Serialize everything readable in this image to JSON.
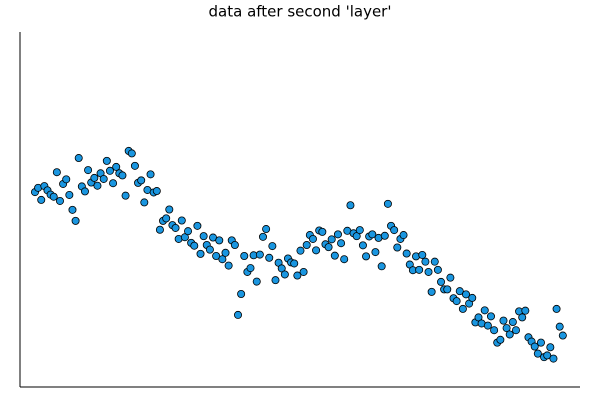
{
  "chart_data": {
    "type": "scatter",
    "title": "data after second 'layer'",
    "x": [
      1,
      2,
      3,
      4,
      5,
      6,
      7,
      8,
      9,
      10,
      11,
      12,
      13,
      14,
      15,
      16,
      17,
      18,
      19,
      20,
      21,
      22,
      23,
      24,
      25,
      26,
      27,
      28,
      29,
      30,
      31,
      32,
      33,
      34,
      35,
      36,
      37,
      38,
      39,
      40,
      41,
      42,
      43,
      44,
      45,
      46,
      47,
      48,
      49,
      50,
      51,
      52,
      53,
      54,
      55,
      56,
      57,
      58,
      59,
      60,
      61,
      62,
      63,
      64,
      65,
      66,
      67,
      68,
      69,
      70,
      71,
      72,
      73,
      74,
      75,
      76,
      77,
      78,
      79,
      80,
      81,
      82,
      83,
      84,
      85,
      86,
      87,
      88,
      89,
      90,
      91,
      92,
      93,
      94,
      95,
      96,
      97,
      98,
      99,
      100,
      101,
      102,
      103,
      104,
      105,
      106,
      107,
      108,
      109,
      110,
      111,
      112,
      113,
      114,
      115,
      116,
      117,
      118,
      119,
      120,
      121,
      122,
      123,
      124,
      125,
      126,
      127,
      128,
      129,
      130,
      131,
      132,
      133,
      134,
      135,
      136,
      137,
      138,
      139,
      140,
      141,
      142,
      143,
      144,
      145,
      146,
      147,
      148,
      149,
      150,
      151,
      152,
      153,
      154,
      155,
      156,
      157,
      158,
      159,
      160,
      161,
      162,
      163,
      164,
      165,
      166,
      167,
      168,
      169,
      170
    ],
    "series": [
      {
        "color": "#1a96e0",
        "values": [
          54.9,
          56.1,
          52.7,
          56.6,
          55.4,
          54.2,
          53.6,
          60.5,
          52.4,
          57.2,
          58.5,
          54.1,
          49.9,
          46.8,
          64.5,
          56.5,
          55.1,
          61.1,
          57.6,
          58.9,
          56.7,
          60.2,
          58.6,
          63.7,
          60.9,
          57.4,
          62.0,
          60.2,
          59.6,
          53.9,
          66.5,
          65.8,
          62.3,
          57.5,
          58.2,
          52.0,
          55.5,
          59.9,
          54.8,
          55.2,
          44.3,
          46.8,
          47.5,
          50.0,
          45.6,
          44.8,
          41.7,
          46.9,
          42.2,
          43.9,
          40.6,
          39.8,
          45.4,
          37.5,
          42.5,
          40.0,
          38.7,
          42.1,
          36.9,
          41.3,
          36.0,
          37.8,
          34.2,
          41.3,
          40.0,
          20.3,
          26.2,
          36.9,
          32.4,
          33.5,
          37.1,
          29.7,
          37.3,
          42.3,
          44.5,
          36.4,
          39.7,
          30.1,
          35.0,
          33.4,
          31.7,
          36.2,
          35.1,
          34.8,
          31.4,
          38.4,
          32.4,
          40.0,
          42.8,
          41.7,
          38.5,
          44.1,
          43.7,
          40.2,
          39.4,
          41.6,
          37.0,
          43.0,
          40.5,
          36.0,
          44.0,
          51.2,
          43.3,
          42.5,
          44.2,
          39.9,
          36.8,
          42.4,
          43.0,
          38.0,
          42.0,
          34.0,
          42.6,
          51.6,
          45.4,
          44.2,
          39.3,
          41.7,
          42.8,
          37.6,
          34.5,
          32.9,
          36.8,
          33.0,
          37.2,
          35.3,
          32.4,
          26.8,
          35.3,
          33.0,
          29.6,
          27.5,
          27.5,
          30.8,
          25.0,
          24.2,
          27.0,
          22.0,
          26.1,
          23.5,
          25.1,
          18.2,
          19.6,
          17.9,
          21.6,
          17.3,
          19.9,
          16.0,
          12.5,
          13.3,
          18.7,
          16.6,
          14.8,
          18.3,
          16.0,
          21.3,
          19.6,
          21.5,
          14.0,
          12.8,
          11.4,
          9.4,
          12.5,
          8.4,
          8.9,
          11.2,
          8.0,
          22.0,
          17.0,
          14.5
        ]
      }
    ],
    "xlim": [
      -3.8,
      175.5
    ],
    "ylim": [
      0,
      100
    ]
  }
}
